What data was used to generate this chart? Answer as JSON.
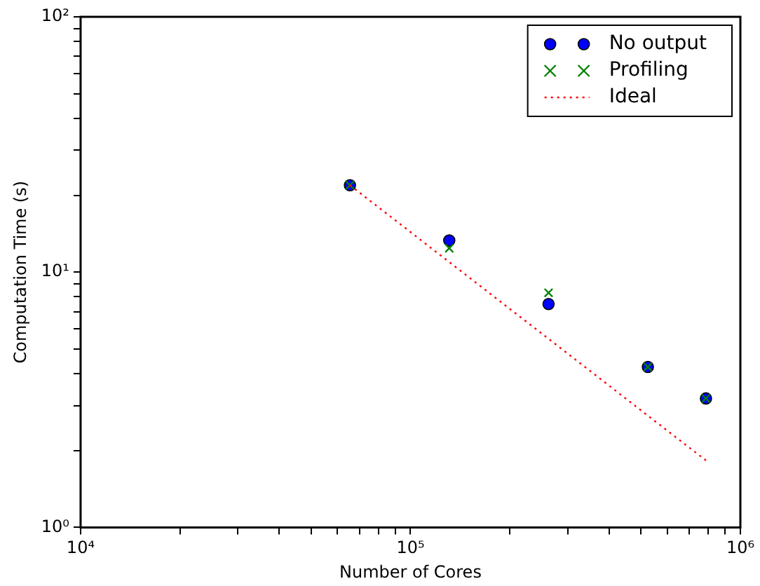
{
  "chart_data": {
    "type": "scatter",
    "xlabel": "Number of Cores",
    "ylabel": "Computation Time (s)",
    "log": "xy",
    "grid": false,
    "legend": "top right",
    "x": [
      65536,
      131072,
      262144,
      524288,
      786432
    ],
    "xlim": [
      10000,
      1000000
    ],
    "ylim": [
      1,
      100
    ],
    "xticks": [
      {
        "value": 10000,
        "label": "10⁴"
      },
      {
        "value": 20000,
        "label": null
      },
      {
        "value": 30000,
        "label": null
      },
      {
        "value": 40000,
        "label": null
      },
      {
        "value": 50000,
        "label": null
      },
      {
        "value": 60000,
        "label": null
      },
      {
        "value": 70000,
        "label": null
      },
      {
        "value": 80000,
        "label": null
      },
      {
        "value": 90000,
        "label": null
      },
      {
        "value": 100000,
        "label": "10⁵"
      },
      {
        "value": 200000,
        "label": null
      },
      {
        "value": 300000,
        "label": null
      },
      {
        "value": 400000,
        "label": null
      },
      {
        "value": 500000,
        "label": null
      },
      {
        "value": 600000,
        "label": null
      },
      {
        "value": 700000,
        "label": null
      },
      {
        "value": 800000,
        "label": null
      },
      {
        "value": 900000,
        "label": null
      },
      {
        "value": 1000000,
        "label": "10⁶"
      }
    ],
    "yticks": [
      {
        "value": 1,
        "label": "10⁰"
      },
      {
        "value": 2,
        "label": null
      },
      {
        "value": 3,
        "label": null
      },
      {
        "value": 4,
        "label": null
      },
      {
        "value": 5,
        "label": null
      },
      {
        "value": 6,
        "label": null
      },
      {
        "value": 7,
        "label": null
      },
      {
        "value": 8,
        "label": null
      },
      {
        "value": 9,
        "label": null
      },
      {
        "value": 10,
        "label": "10¹"
      },
      {
        "value": 20,
        "label": null
      },
      {
        "value": 30,
        "label": null
      },
      {
        "value": 40,
        "label": null
      },
      {
        "value": 50,
        "label": null
      },
      {
        "value": 60,
        "label": null
      },
      {
        "value": 70,
        "label": null
      },
      {
        "value": 80,
        "label": null
      },
      {
        "value": 90,
        "label": null
      },
      {
        "value": 100,
        "label": "10²"
      }
    ],
    "series": [
      {
        "name": "No output",
        "color": "#0000ff",
        "marker": "circle",
        "values": [
          21.9,
          13.3,
          7.5,
          4.25,
          3.2
        ]
      },
      {
        "name": "Profiling",
        "color": "#008000",
        "marker": "cross",
        "values": [
          21.9,
          12.4,
          8.3,
          4.25,
          3.2
        ]
      },
      {
        "name": "Ideal",
        "type": "line",
        "color": "#ff0000",
        "marker": "none",
        "line_style": "dotted",
        "values": [
          21.9,
          10.95,
          5.48,
          2.74,
          1.83
        ]
      }
    ]
  }
}
